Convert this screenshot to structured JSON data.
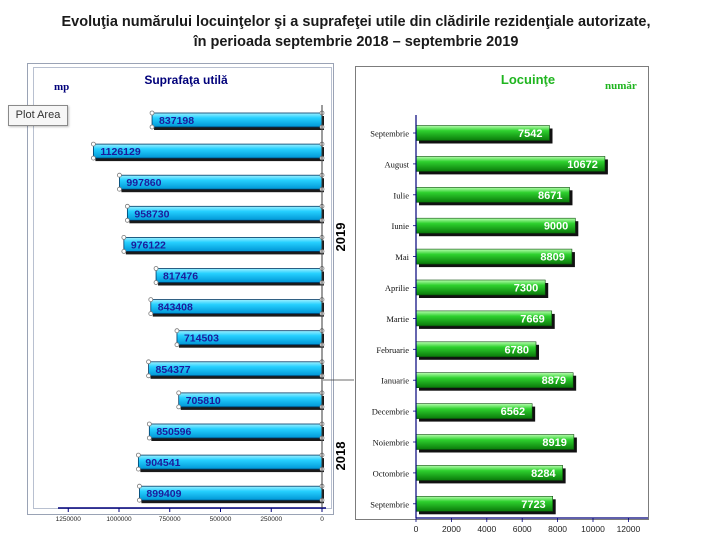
{
  "title_lines": [
    "Evoluţia numărului locuinţelor şi a suprafeţei utile din clădirile rezidenţiale autorizate,",
    "în perioada septembrie 2018 – septembrie 2019"
  ],
  "tooltip": "Plot Area",
  "colors": {
    "area_bar": "#00bfff",
    "area_label": "#1c1c9c",
    "dwelling_bar": "#1fb51f",
    "axis": "#00007a",
    "year_label": "#000000"
  },
  "chart_data": [
    {
      "type": "bar",
      "orientation": "horizontal",
      "title": "Suprafaţa utilă",
      "unit_label": "mp",
      "categories": [
        "Septembrie",
        "August",
        "Iulie",
        "Iunie",
        "Mai",
        "Aprilie",
        "Martie",
        "Februarie",
        "Ianuarie",
        "Decembrie",
        "Noiembrie",
        "Octombrie",
        "Septembrie"
      ],
      "values": [
        837198,
        1126129,
        997860,
        958730,
        976122,
        817476,
        843408,
        714503,
        854377,
        705810,
        850596,
        904541,
        899409
      ],
      "value_labels": [
        "837198",
        "1126129",
        "997860",
        "958730",
        "976122",
        "817476",
        "843408",
        "714503",
        "854377",
        "705810",
        "850596",
        "904541",
        "899409"
      ],
      "xlim": [
        0,
        1250000
      ],
      "reversed_x": true,
      "xticks": [
        1250000,
        1000000,
        750000,
        500000,
        250000,
        0
      ],
      "xtick_labels": [
        "1250000",
        "1000000",
        "750000",
        "500000",
        "250000",
        "0"
      ],
      "year_labels": [
        "2019",
        "2018"
      ]
    },
    {
      "type": "bar",
      "orientation": "horizontal",
      "title": "Locuinţe",
      "unit_label": "număr",
      "categories": [
        "Septembrie",
        "August",
        "Iulie",
        "Iunie",
        "Mai",
        "Aprilie",
        "Martie",
        "Februarie",
        "Ianuarie",
        "Decembrie",
        "Noiembrie",
        "Octombrie",
        "Septembrie"
      ],
      "values": [
        7542,
        10672,
        8671,
        9000,
        8809,
        7300,
        7669,
        6780,
        8879,
        6562,
        8919,
        8284,
        7723
      ],
      "value_labels": [
        "7542",
        "10672",
        "8671",
        "9000",
        "8809",
        "7300",
        "7669",
        "6780",
        "8879",
        "6562",
        "8919",
        "8284",
        "7723"
      ],
      "xlim": [
        0,
        12000
      ],
      "xticks": [
        0,
        2000,
        4000,
        6000,
        8000,
        10000,
        12000
      ],
      "xtick_labels": [
        "0",
        "2000",
        "4000",
        "6000",
        "8000",
        "10000",
        "12000"
      ]
    }
  ]
}
